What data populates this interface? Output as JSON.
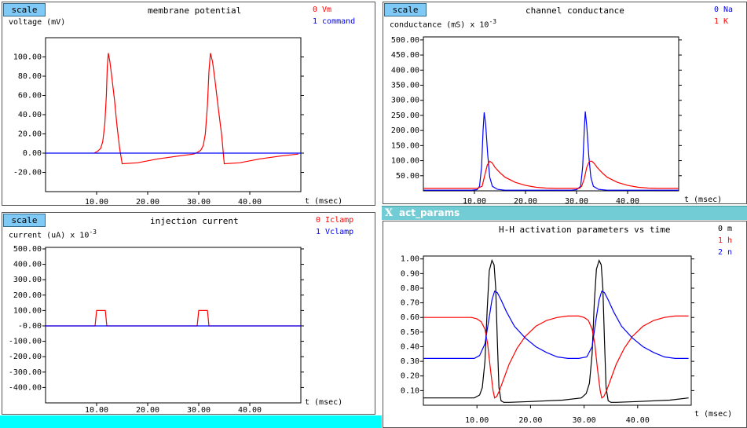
{
  "window": {
    "title": "act_params"
  },
  "panels": {
    "membrane": {
      "scale_label": "scale",
      "title": "membrane potential",
      "ylabel": "voltage (mV)",
      "legend": [
        {
          "label": "0 Vm",
          "color": "#ff0000"
        },
        {
          "label": "1 command",
          "color": "#0000ff"
        }
      ]
    },
    "conductance": {
      "scale_label": "scale",
      "title": "channel conductance",
      "ylabel_main": "conductance (mS) x 10",
      "ylabel_exp": "-3",
      "legend": [
        {
          "label": "0 Na",
          "color": "#0000ff"
        },
        {
          "label": "1 K",
          "color": "#ff0000"
        }
      ]
    },
    "injection": {
      "scale_label": "scale",
      "title": "injection current",
      "ylabel_main": "current (uA) x 10",
      "ylabel_exp": "-3",
      "legend": [
        {
          "label": "0 Iclamp",
          "color": "#ff0000"
        },
        {
          "label": "1 Vclamp",
          "color": "#0000ff"
        }
      ]
    },
    "activation": {
      "title": "H-H activation parameters vs time",
      "legend": [
        {
          "label": "0 m",
          "color": "#000000"
        },
        {
          "label": "1 h",
          "color": "#ff0000"
        },
        {
          "label": "2 n",
          "color": "#0000ff"
        }
      ]
    }
  },
  "chart_data": [
    {
      "type": "line",
      "title": "membrane potential",
      "ylabel": "voltage (mV)",
      "xlabel": "t (msec)",
      "xlim": [
        0,
        50
      ],
      "ylim": [
        -40,
        120
      ],
      "xticks": [
        "10.00",
        "20.00",
        "30.00",
        "40.00"
      ],
      "yticks": [
        "-20.00",
        "0.00",
        "20.00",
        "40.00",
        "60.00",
        "80.00",
        "100.00"
      ],
      "series": [
        {
          "name": "Vm",
          "color": "#ff0000",
          "x": [
            9.5,
            10.2,
            10.8,
            11.2,
            11.6,
            11.9,
            12.1,
            12.3,
            12.6,
            13.0,
            13.5,
            14.0,
            14.5,
            15.0,
            18.0,
            22.0,
            26.0,
            29.0,
            29.8,
            30.4,
            30.9,
            31.3,
            31.7,
            32.0,
            32.3,
            32.7,
            33.2,
            33.8,
            34.5,
            35.0,
            38.0,
            42.0,
            46.0,
            49.5
          ],
          "y": [
            0,
            2,
            5,
            12,
            30,
            60,
            90,
            104,
            95,
            78,
            55,
            28,
            5,
            -11,
            -10,
            -6,
            -3,
            -1,
            1,
            3,
            8,
            20,
            50,
            85,
            104,
            95,
            75,
            48,
            18,
            -11,
            -10,
            -6,
            -3,
            -1
          ]
        },
        {
          "name": "command",
          "color": "#0000ff",
          "x": [
            0,
            50
          ],
          "y": [
            0,
            0
          ]
        }
      ]
    },
    {
      "type": "line",
      "title": "channel conductance",
      "ylabel": "conductance (mS) x 10^-3",
      "xlabel": "t (msec)",
      "xlim": [
        0,
        50
      ],
      "ylim": [
        0,
        510
      ],
      "xticks": [
        "10.00",
        "20.00",
        "30.00",
        "40.00"
      ],
      "yticks": [
        "50.00",
        "100.00",
        "150.00",
        "200.00",
        "250.00",
        "300.00",
        "350.00",
        "400.00",
        "450.00",
        "500.00"
      ],
      "series": [
        {
          "name": "Na",
          "color": "#0000ff",
          "x": [
            0,
            9.5,
            10.5,
            11.0,
            11.4,
            11.7,
            11.9,
            12.2,
            12.6,
            13.0,
            13.5,
            14.5,
            16.0,
            29.0,
            30.0,
            30.8,
            31.2,
            31.5,
            31.7,
            32.0,
            32.4,
            32.8,
            33.3,
            34.3,
            36.0,
            50.0
          ],
          "y": [
            2,
            2,
            4,
            15,
            80,
            200,
            260,
            220,
            120,
            45,
            15,
            5,
            2,
            2,
            4,
            15,
            80,
            200,
            263,
            215,
            115,
            45,
            15,
            5,
            2,
            2
          ]
        },
        {
          "name": "K",
          "color": "#ff0000",
          "x": [
            0,
            10.5,
            11.5,
            12.0,
            12.5,
            13.0,
            13.5,
            14.0,
            15.0,
            16.0,
            18.0,
            20.0,
            22.0,
            24.0,
            26.0,
            28.0,
            30.5,
            31.0,
            31.5,
            32.0,
            32.5,
            33.0,
            33.5,
            34.0,
            35.0,
            36.0,
            38.0,
            40.0,
            42.0,
            44.0,
            46.0,
            50.0
          ],
          "y": [
            8,
            8,
            15,
            50,
            85,
            98,
            92,
            78,
            60,
            45,
            28,
            18,
            12,
            9,
            8,
            8,
            8,
            15,
            40,
            78,
            98,
            98,
            90,
            78,
            60,
            45,
            28,
            18,
            12,
            9,
            8,
            8
          ]
        }
      ]
    },
    {
      "type": "line",
      "title": "injection current",
      "ylabel": "current (uA) x 10^-3",
      "xlabel": "t (msec)",
      "xlim": [
        0,
        50
      ],
      "ylim": [
        -500,
        510
      ],
      "xticks": [
        "10.00",
        "20.00",
        "30.00",
        "40.00"
      ],
      "yticks": [
        "-400.00",
        "-300.00",
        "-200.00",
        "-100.00",
        "-0.00",
        "100.00",
        "200.00",
        "300.00",
        "400.00",
        "500.00"
      ],
      "series": [
        {
          "name": "Iclamp",
          "color": "#ff0000",
          "x": [
            0,
            9.7,
            10.0,
            11.7,
            12.0,
            29.7,
            30.0,
            31.7,
            32.0,
            50.0
          ],
          "y": [
            0,
            0,
            100,
            100,
            0,
            0,
            100,
            100,
            0,
            0
          ]
        },
        {
          "name": "Vclamp",
          "color": "#0000ff",
          "x": [
            0,
            50
          ],
          "y": [
            0,
            0
          ]
        }
      ]
    },
    {
      "type": "line",
      "title": "H-H activation parameters vs time",
      "xlabel": "t (msec)",
      "xlim": [
        0,
        50
      ],
      "ylim": [
        0,
        1.02
      ],
      "xticks": [
        "10.00",
        "20.00",
        "30.00",
        "40.00"
      ],
      "yticks": [
        "0.10",
        "0.20",
        "0.30",
        "0.40",
        "0.50",
        "0.60",
        "0.70",
        "0.80",
        "0.90",
        "1.00"
      ],
      "series": [
        {
          "name": "m",
          "color": "#000000",
          "x": [
            0,
            9.5,
            10.5,
            11.0,
            11.5,
            11.9,
            12.3,
            12.8,
            13.2,
            13.5,
            13.8,
            14.1,
            14.5,
            15.0,
            16.0,
            20.0,
            26.0,
            29.5,
            30.4,
            31.0,
            31.5,
            31.9,
            32.3,
            32.8,
            33.2,
            33.5,
            33.8,
            34.1,
            34.5,
            35.0,
            36.0,
            40.0,
            46.0,
            49.5
          ],
          "y": [
            0.05,
            0.05,
            0.07,
            0.12,
            0.3,
            0.65,
            0.92,
            0.99,
            0.96,
            0.8,
            0.45,
            0.12,
            0.03,
            0.02,
            0.02,
            0.025,
            0.035,
            0.05,
            0.08,
            0.15,
            0.35,
            0.7,
            0.93,
            0.99,
            0.96,
            0.8,
            0.45,
            0.12,
            0.03,
            0.02,
            0.02,
            0.025,
            0.035,
            0.05
          ]
        },
        {
          "name": "h",
          "color": "#ff0000",
          "x": [
            0,
            9.0,
            10.0,
            10.8,
            11.5,
            12.0,
            12.5,
            13.0,
            13.3,
            13.7,
            14.2,
            15.0,
            16.0,
            17.5,
            19.0,
            21.0,
            23.0,
            25.0,
            27.0,
            29.0,
            30.0,
            30.8,
            31.5,
            32.0,
            32.5,
            33.0,
            33.3,
            33.7,
            34.2,
            35.0,
            36.0,
            37.5,
            39.0,
            41.0,
            43.0,
            45.0,
            47.0,
            49.5
          ],
          "y": [
            0.6,
            0.6,
            0.59,
            0.57,
            0.52,
            0.42,
            0.25,
            0.1,
            0.05,
            0.06,
            0.1,
            0.18,
            0.28,
            0.39,
            0.47,
            0.54,
            0.58,
            0.6,
            0.61,
            0.61,
            0.6,
            0.58,
            0.52,
            0.42,
            0.25,
            0.1,
            0.05,
            0.06,
            0.1,
            0.18,
            0.28,
            0.39,
            0.47,
            0.54,
            0.58,
            0.6,
            0.61,
            0.61
          ]
        },
        {
          "name": "n",
          "color": "#0000ff",
          "x": [
            0,
            9.5,
            10.5,
            11.5,
            12.2,
            12.8,
            13.3,
            13.8,
            14.5,
            15.5,
            17.0,
            19.0,
            21.0,
            23.0,
            25.0,
            27.0,
            29.0,
            30.5,
            31.5,
            32.2,
            32.8,
            33.3,
            33.8,
            34.5,
            35.5,
            37.0,
            39.0,
            41.0,
            43.0,
            45.0,
            47.0,
            49.5
          ],
          "y": [
            0.32,
            0.32,
            0.34,
            0.42,
            0.58,
            0.72,
            0.78,
            0.77,
            0.72,
            0.64,
            0.54,
            0.46,
            0.4,
            0.36,
            0.33,
            0.32,
            0.32,
            0.33,
            0.4,
            0.58,
            0.72,
            0.78,
            0.77,
            0.72,
            0.64,
            0.54,
            0.46,
            0.4,
            0.36,
            0.33,
            0.32,
            0.32
          ]
        }
      ]
    }
  ]
}
